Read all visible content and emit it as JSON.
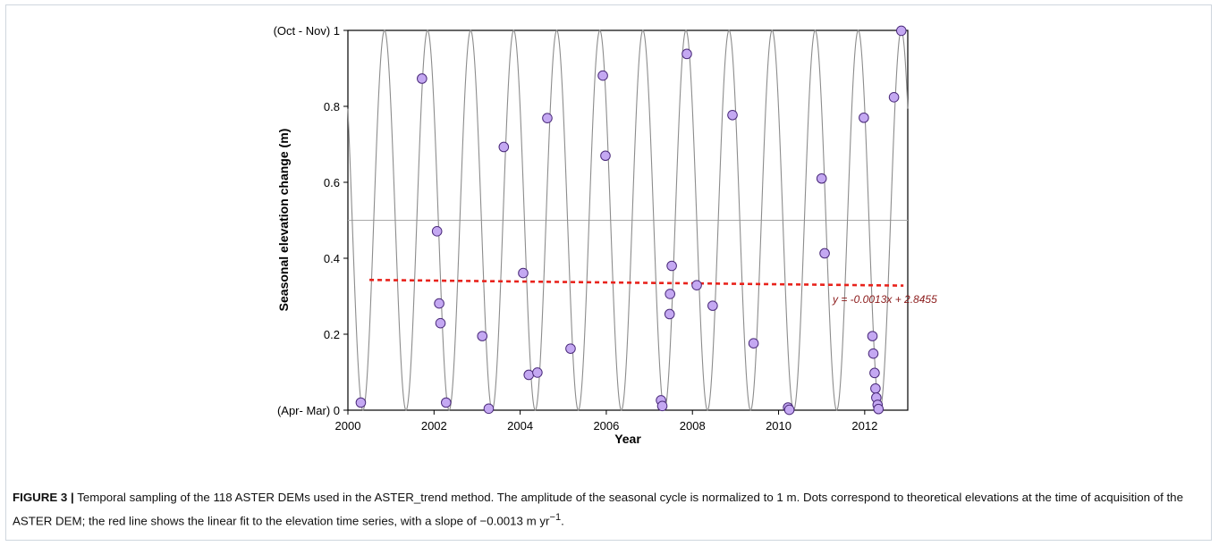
{
  "chart_data": {
    "type": "scatter",
    "xlabel": "Year",
    "ylabel": "Seasonal elevation change (m)",
    "xlim": [
      2000,
      2013
    ],
    "ylim": [
      0,
      1
    ],
    "x_ticks": [
      {
        "value": 2000,
        "label": "2000"
      },
      {
        "value": 2002,
        "label": "2002"
      },
      {
        "value": 2004,
        "label": "2004"
      },
      {
        "value": 2006,
        "label": "2006"
      },
      {
        "value": 2008,
        "label": "2008"
      },
      {
        "value": 2010,
        "label": "2010"
      },
      {
        "value": 2012,
        "label": "2012"
      }
    ],
    "y_ticks": [
      {
        "value": 0,
        "label": "(Apr- Mar) 0"
      },
      {
        "value": 0.2,
        "label": "0.2"
      },
      {
        "value": 0.4,
        "label": "0.4"
      },
      {
        "value": 0.6,
        "label": "0.6"
      },
      {
        "value": 0.8,
        "label": "0.8"
      },
      {
        "value": 1,
        "label": "(Oct - Nov) 1"
      }
    ],
    "reference_line_y": 0.5,
    "seasonal_curve": {
      "peak_year": 2000.85,
      "period_years": 1,
      "amplitude": 1
    },
    "trend": {
      "slope": -0.0013,
      "intercept": 2.8455,
      "start": [
        2000.5,
        0.343
      ],
      "end": [
        2012.9,
        0.328
      ],
      "equation": "y = -0.0013x + 2.8455",
      "color": "#e8221b"
    },
    "colors": {
      "points": "#c4a8f2",
      "point_edge": "#4a2a7a",
      "curve": "#8c8c8c",
      "reference": "#aaaaaa"
    },
    "points": [
      [
        2000.3,
        0.02
      ],
      [
        2001.72,
        0.873
      ],
      [
        2002.07,
        0.471
      ],
      [
        2002.12,
        0.281
      ],
      [
        2002.15,
        0.229
      ],
      [
        2002.28,
        0.02
      ],
      [
        2003.12,
        0.195
      ],
      [
        2003.27,
        0.004
      ],
      [
        2003.62,
        0.693
      ],
      [
        2004.07,
        0.361
      ],
      [
        2004.2,
        0.093
      ],
      [
        2004.4,
        0.099
      ],
      [
        2004.63,
        0.769
      ],
      [
        2005.17,
        0.162
      ],
      [
        2005.92,
        0.881
      ],
      [
        2005.98,
        0.67
      ],
      [
        2007.27,
        0.026
      ],
      [
        2007.3,
        0.011
      ],
      [
        2007.47,
        0.253
      ],
      [
        2007.48,
        0.306
      ],
      [
        2007.52,
        0.38
      ],
      [
        2007.87,
        0.938
      ],
      [
        2008.1,
        0.329
      ],
      [
        2008.47,
        0.275
      ],
      [
        2008.93,
        0.777
      ],
      [
        2009.42,
        0.176
      ],
      [
        2010.22,
        0.007
      ],
      [
        2010.25,
        0.001
      ],
      [
        2011.0,
        0.61
      ],
      [
        2011.07,
        0.413
      ],
      [
        2011.98,
        0.77
      ],
      [
        2012.18,
        0.195
      ],
      [
        2012.2,
        0.149
      ],
      [
        2012.23,
        0.098
      ],
      [
        2012.25,
        0.057
      ],
      [
        2012.27,
        0.033
      ],
      [
        2012.3,
        0.014
      ],
      [
        2012.32,
        0.003
      ],
      [
        2012.68,
        0.824
      ],
      [
        2012.85,
        0.999
      ]
    ]
  },
  "caption": {
    "label": "FIGURE 3 |",
    "text": " Temporal sampling of the 118 ASTER DEMs used in the ASTER_trend method. The amplitude of the seasonal cycle is normalized to 1 m. Dots correspond to theoretical elevations at the time of acquisition of the ASTER DEM; the red line shows the linear fit to the elevation time series, with a slope of −0.0013 m yr",
    "superscript": "−1",
    "end": "."
  }
}
